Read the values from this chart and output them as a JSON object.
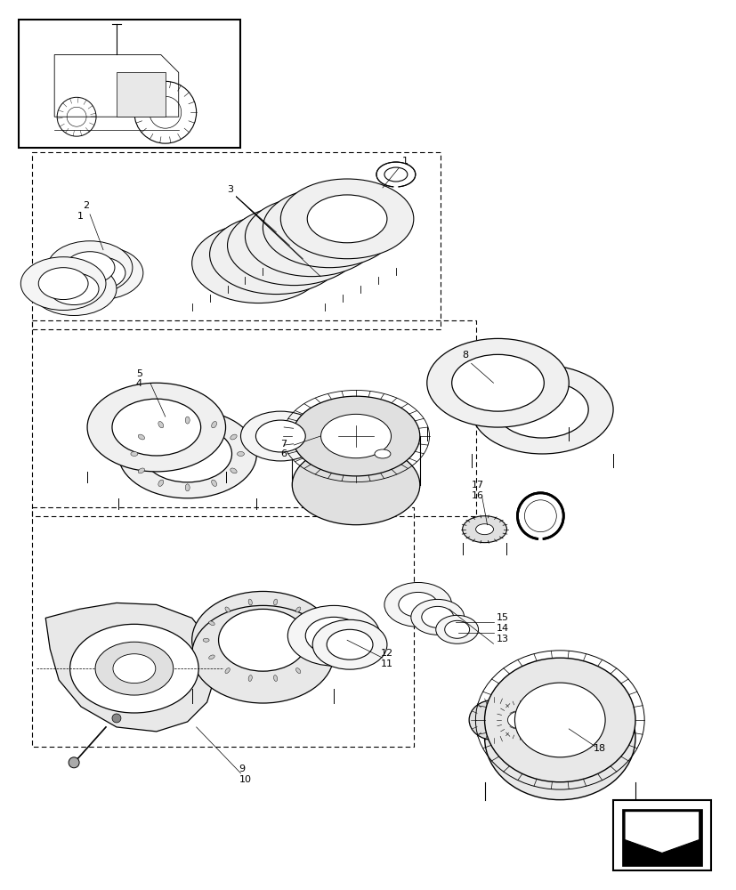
{
  "bg_color": "#ffffff",
  "line_color": "#000000",
  "fig_width": 8.28,
  "fig_height": 10.0,
  "dpi": 100
}
